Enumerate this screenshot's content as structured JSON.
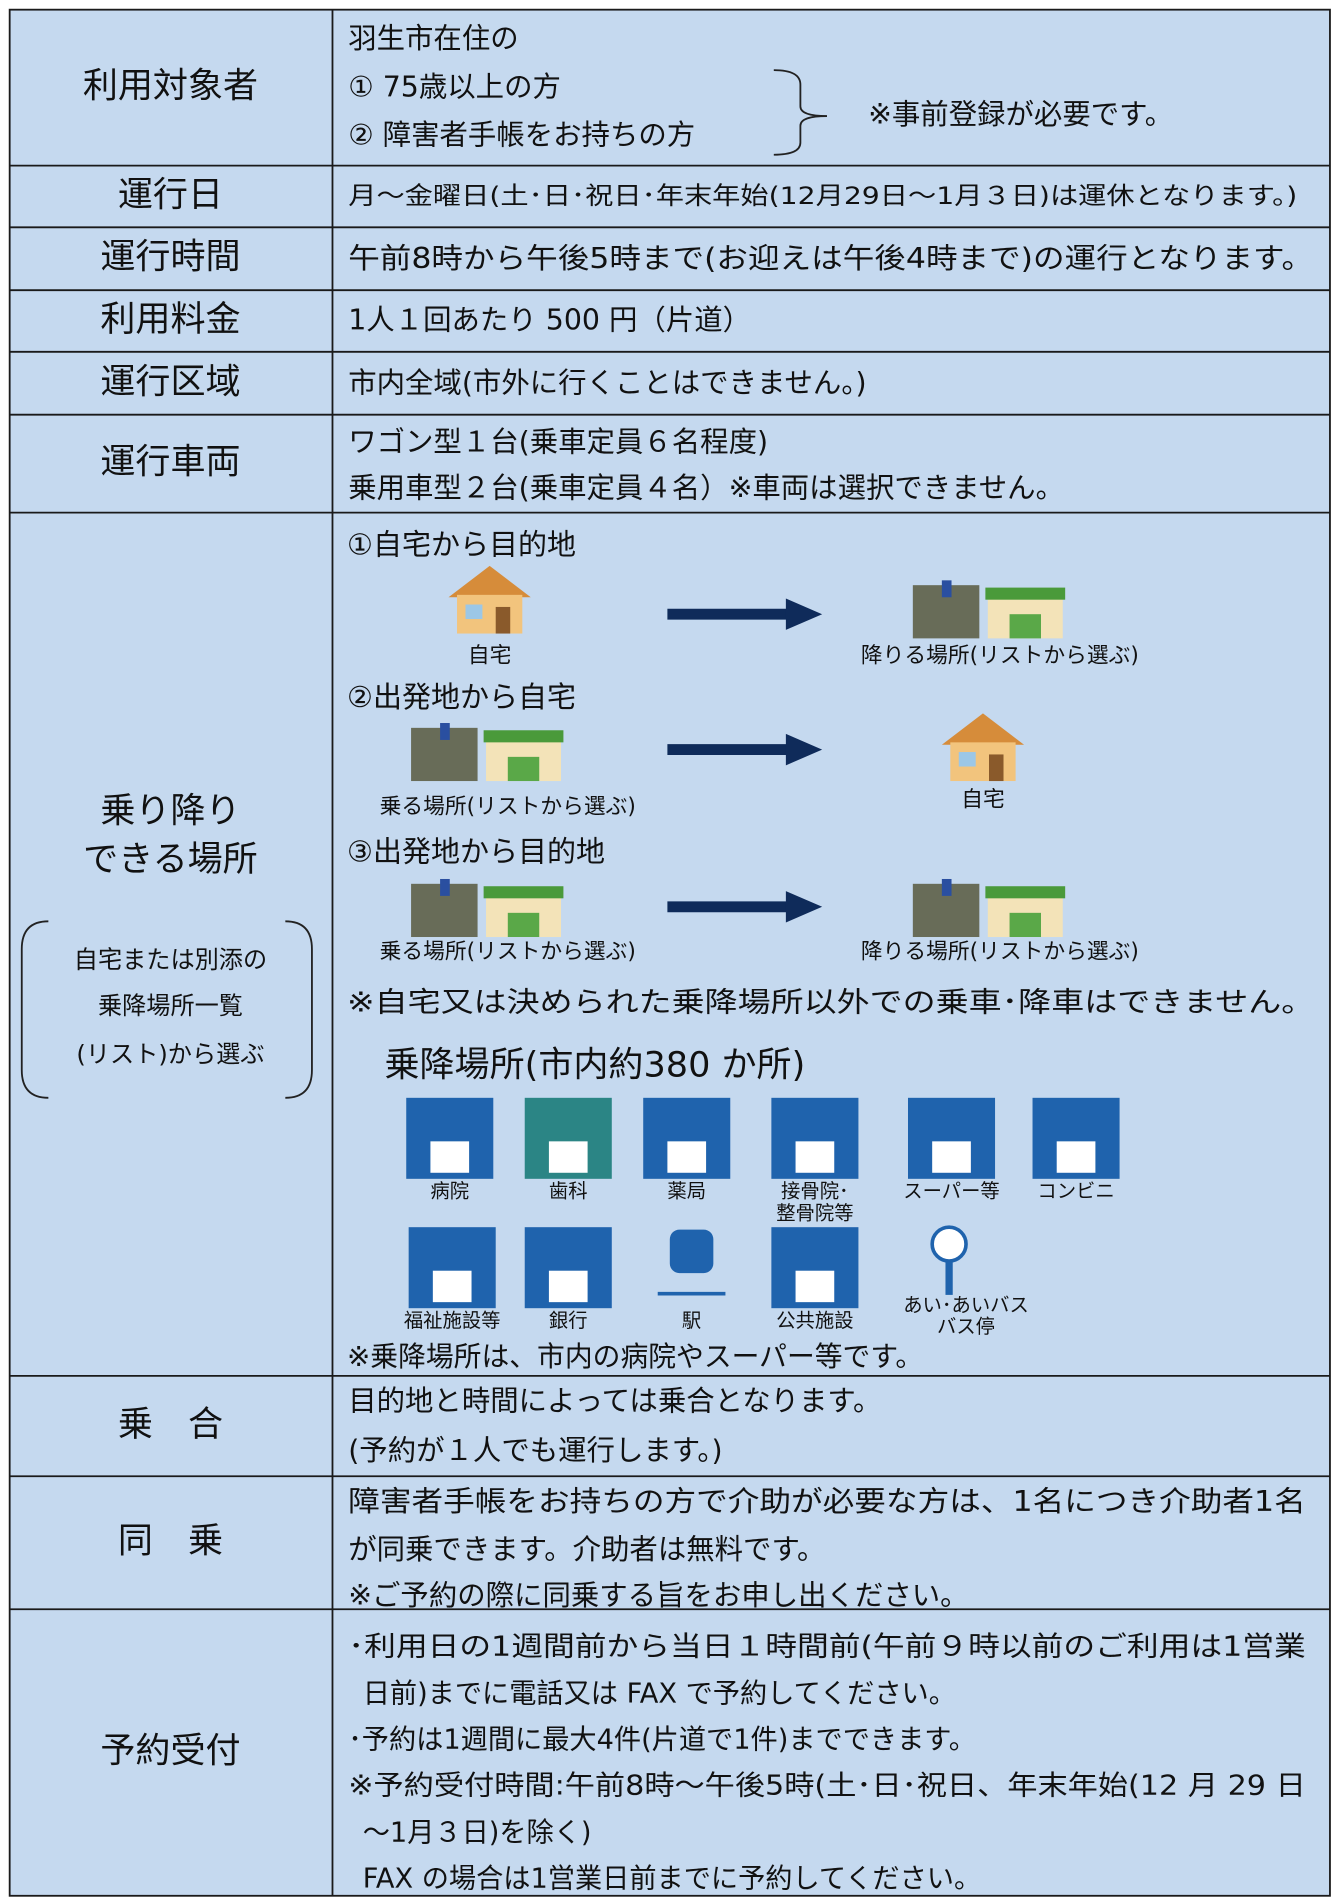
{
  "rows": [
    {
      "label": "利用対象者",
      "lines": [
        "羽生市在住の",
        "① 75歳以上の方",
        "② 障害者手帳をお持ちの方"
      ],
      "note": "※事前登録が必要です。"
    },
    {
      "label": "運行日",
      "lines": [
        "月～金曜日(土･日･祝日･年末年始(12月29日～1月３日)は運休となります。)"
      ]
    },
    {
      "label": "運行時間",
      "lines": [
        "午前8時から午後5時まで(お迎えは午後4時まで)の運行となります。"
      ]
    },
    {
      "label": "利用料金",
      "lines": [
        "1人１回あたり 500 円（片道）"
      ]
    },
    {
      "label": "運行区域",
      "lines": [
        "市内全域(市外に行くことはできません。)"
      ]
    },
    {
      "label": "運行車両",
      "lines": [
        "ワゴン型１台(乗車定員６名程度)",
        "乗用車型２台(乗車定員４名）※車両は選択できません。"
      ]
    },
    {
      "label_lines": [
        "乗り降り",
        "できる場所"
      ],
      "sub": [
        "自宅または別添の",
        "乗降場所一覧",
        "(リスト)から選ぶ"
      ],
      "routes": [
        {
          "title": "①自宅から目的地",
          "from": "自宅",
          "to": "降りる場所(リストから選ぶ)"
        },
        {
          "title": "②出発地から自宅",
          "from": "乗る場所(リストから選ぶ)",
          "to": "自宅"
        },
        {
          "title": "③出発地から目的地",
          "from": "乗る場所(リストから選ぶ)",
          "to": "降りる場所(リストから選ぶ)"
        }
      ],
      "notice": "※自宅又は決められた乗降場所以外での乗車･降車はできません。",
      "places_title": "乗降場所(市内約380 か所)",
      "places": [
        [
          "病院"
        ],
        [
          "歯科"
        ],
        [
          "薬局"
        ],
        [
          "接骨院･",
          "整骨院等"
        ],
        [
          "スーパー等"
        ],
        [
          "コンビニ"
        ],
        [
          "福祉施設等"
        ],
        [
          "銀行"
        ],
        [
          "駅"
        ],
        [
          "公共施設"
        ],
        [
          "あい･あいバス",
          "バス停"
        ]
      ],
      "footer": "※乗降場所は、市内の病院やスーパー等です。"
    },
    {
      "label": "乗　合",
      "lines": [
        "目的地と時間によっては乗合となります。",
        "(予約が１人でも運行します。)"
      ]
    },
    {
      "label": "同　乗",
      "lines": [
        "障害者手帳をお持ちの方で介助が必要な方は、1名につき介助者1名",
        "が同乗できます。介助者は無料です。",
        "※ご予約の際に同乗する旨をお申し出ください。"
      ]
    },
    {
      "label": "予約受付",
      "lines": [
        "･利用日の1週間前から当日１時間前(午前９時以前のご利用は1営業",
        "日前)までに電話又は FAX で予約してください。",
        "･予約は1週間に最大4件(片道で1件)までできます。",
        "※予約受付時間:午前8時～午後5時(土･日･祝日、年末年始(12 月 29 日",
        "～1月３日)を除く)",
        "FAX の場合は1営業日前までに予約してください。"
      ]
    }
  ]
}
